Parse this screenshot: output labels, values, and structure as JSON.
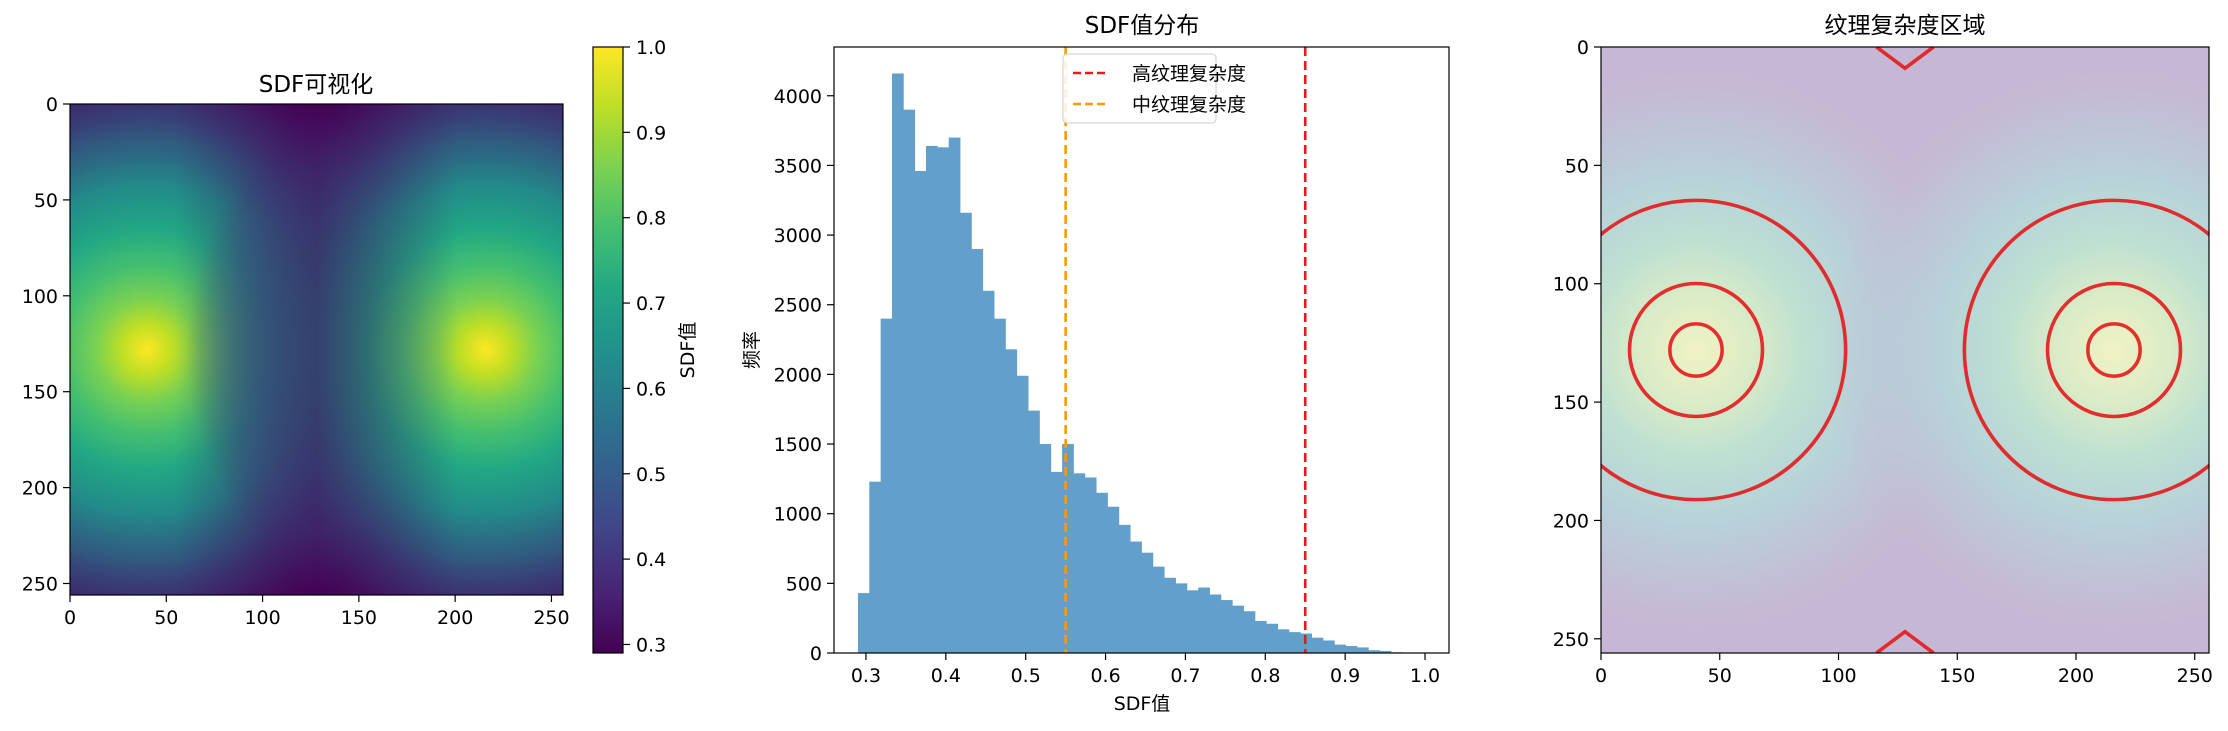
{
  "chart_data": [
    {
      "type": "heatmap",
      "title": "SDF可视化",
      "colormap": "viridis",
      "x_ticks": [
        "0",
        "50",
        "100",
        "150",
        "200",
        "250"
      ],
      "y_ticks": [
        "0",
        "50",
        "100",
        "150",
        "200",
        "250"
      ],
      "image_size": [
        256,
        256
      ],
      "peaks": [
        {
          "x": 40,
          "y": 128,
          "value": 1.0
        },
        {
          "x": 216,
          "y": 128,
          "value": 1.0
        }
      ],
      "min_value": 0.29,
      "colorbar": {
        "label": "SDF值",
        "ticks": [
          "1.0",
          "0.9",
          "0.8",
          "0.7",
          "0.6",
          "0.5",
          "0.4",
          "0.3"
        ],
        "range": [
          0.29,
          1.0
        ]
      }
    },
    {
      "type": "bar",
      "title": "SDF值分布",
      "xlabel": "SDF值",
      "ylabel": "频率",
      "xlim": [
        0.26,
        1.03
      ],
      "ylim": [
        0,
        4350
      ],
      "x_ticks": [
        "0.3",
        "0.4",
        "0.5",
        "0.6",
        "0.7",
        "0.8",
        "0.9",
        "1.0"
      ],
      "y_ticks": [
        "0",
        "500",
        "1000",
        "1500",
        "2000",
        "2500",
        "3000",
        "3500",
        "4000"
      ],
      "bin_start": 0.29,
      "bin_width": 0.0142,
      "values": [
        430,
        1230,
        2400,
        4160,
        3900,
        3460,
        3640,
        3630,
        3700,
        3160,
        2900,
        2600,
        2400,
        2180,
        1990,
        1740,
        1500,
        1300,
        1500,
        1290,
        1260,
        1150,
        1050,
        920,
        800,
        720,
        620,
        540,
        500,
        450,
        470,
        420,
        380,
        340,
        300,
        230,
        210,
        170,
        150,
        140,
        110,
        90,
        60,
        50,
        40,
        20,
        15,
        5
      ],
      "bar_color": "#62a0cb",
      "vlines": [
        {
          "label": "高纹理复杂度",
          "x": 0.85,
          "color": "#e41a1c"
        },
        {
          "label": "中纹理复杂度",
          "x": 0.55,
          "color": "#ff9900"
        }
      ],
      "legend_position": "top-center"
    },
    {
      "type": "heatmap",
      "title": "纹理复杂度区域",
      "x_ticks": [
        "0",
        "50",
        "100",
        "150",
        "200",
        "250"
      ],
      "y_ticks": [
        "0",
        "50",
        "100",
        "150",
        "200",
        "250"
      ],
      "image_size": [
        256,
        256
      ],
      "contour_color": "#e41a1c",
      "contours_around_peaks": [
        {
          "center": [
            40,
            128
          ],
          "radii": [
            11,
            28,
            63
          ]
        },
        {
          "center": [
            216,
            128
          ],
          "radii": [
            11,
            28,
            63
          ]
        }
      ]
    }
  ]
}
